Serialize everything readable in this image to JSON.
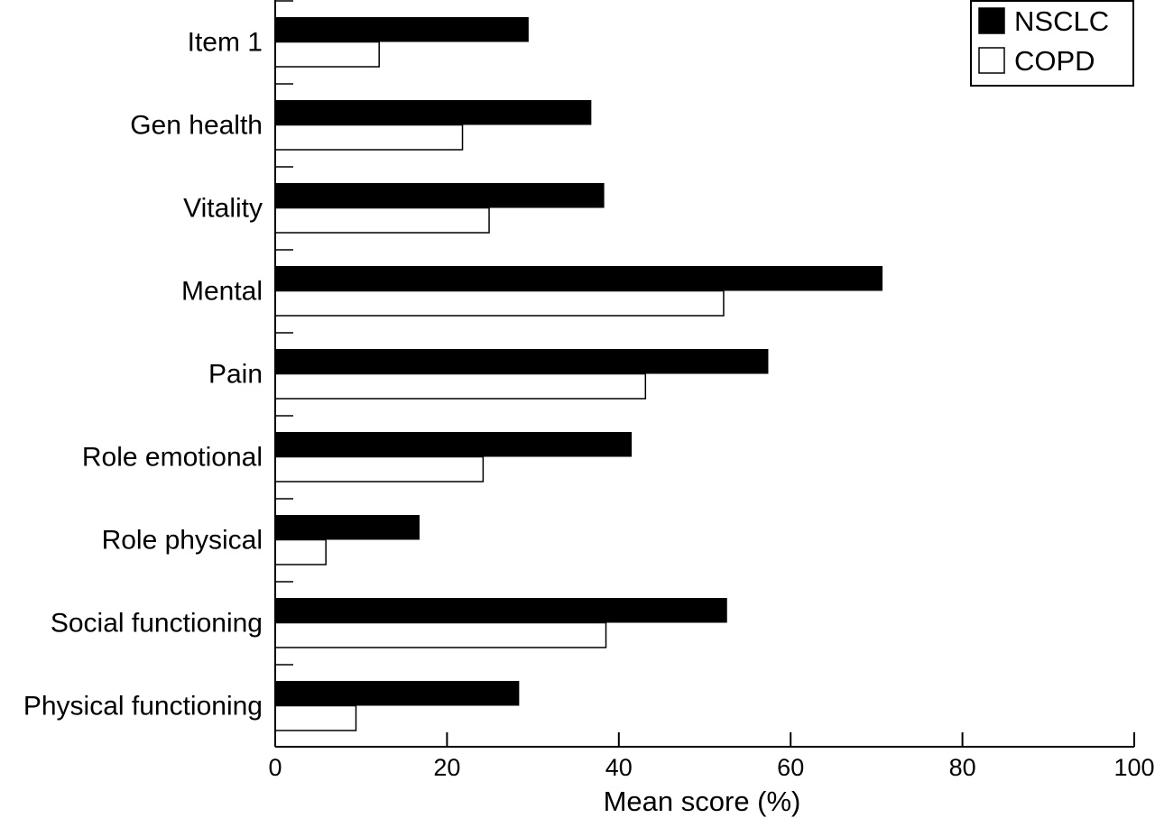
{
  "chart_data": {
    "type": "bar",
    "orientation": "horizontal",
    "title": "",
    "xlabel": "Mean score (%)",
    "ylabel": "",
    "xlim": [
      0,
      100
    ],
    "xticks": [
      0,
      20,
      40,
      60,
      80,
      100
    ],
    "categories": [
      "Item 1",
      "Gen health",
      "Vitality",
      "Mental",
      "Pain",
      "Role emotional",
      "Role physical",
      "Social functioning",
      "Physical functioning"
    ],
    "series": [
      {
        "name": "NSCLC",
        "color": "#000000",
        "values": [
          29.5,
          36.8,
          38.3,
          70.7,
          57.4,
          41.5,
          16.8,
          52.6,
          28.4
        ]
      },
      {
        "name": "COPD",
        "color": "#ffffff",
        "values": [
          12.1,
          21.8,
          24.9,
          52.2,
          43.1,
          24.2,
          5.9,
          38.5,
          9.4
        ]
      }
    ],
    "legend": {
      "position": "top-right"
    },
    "grid": false
  }
}
